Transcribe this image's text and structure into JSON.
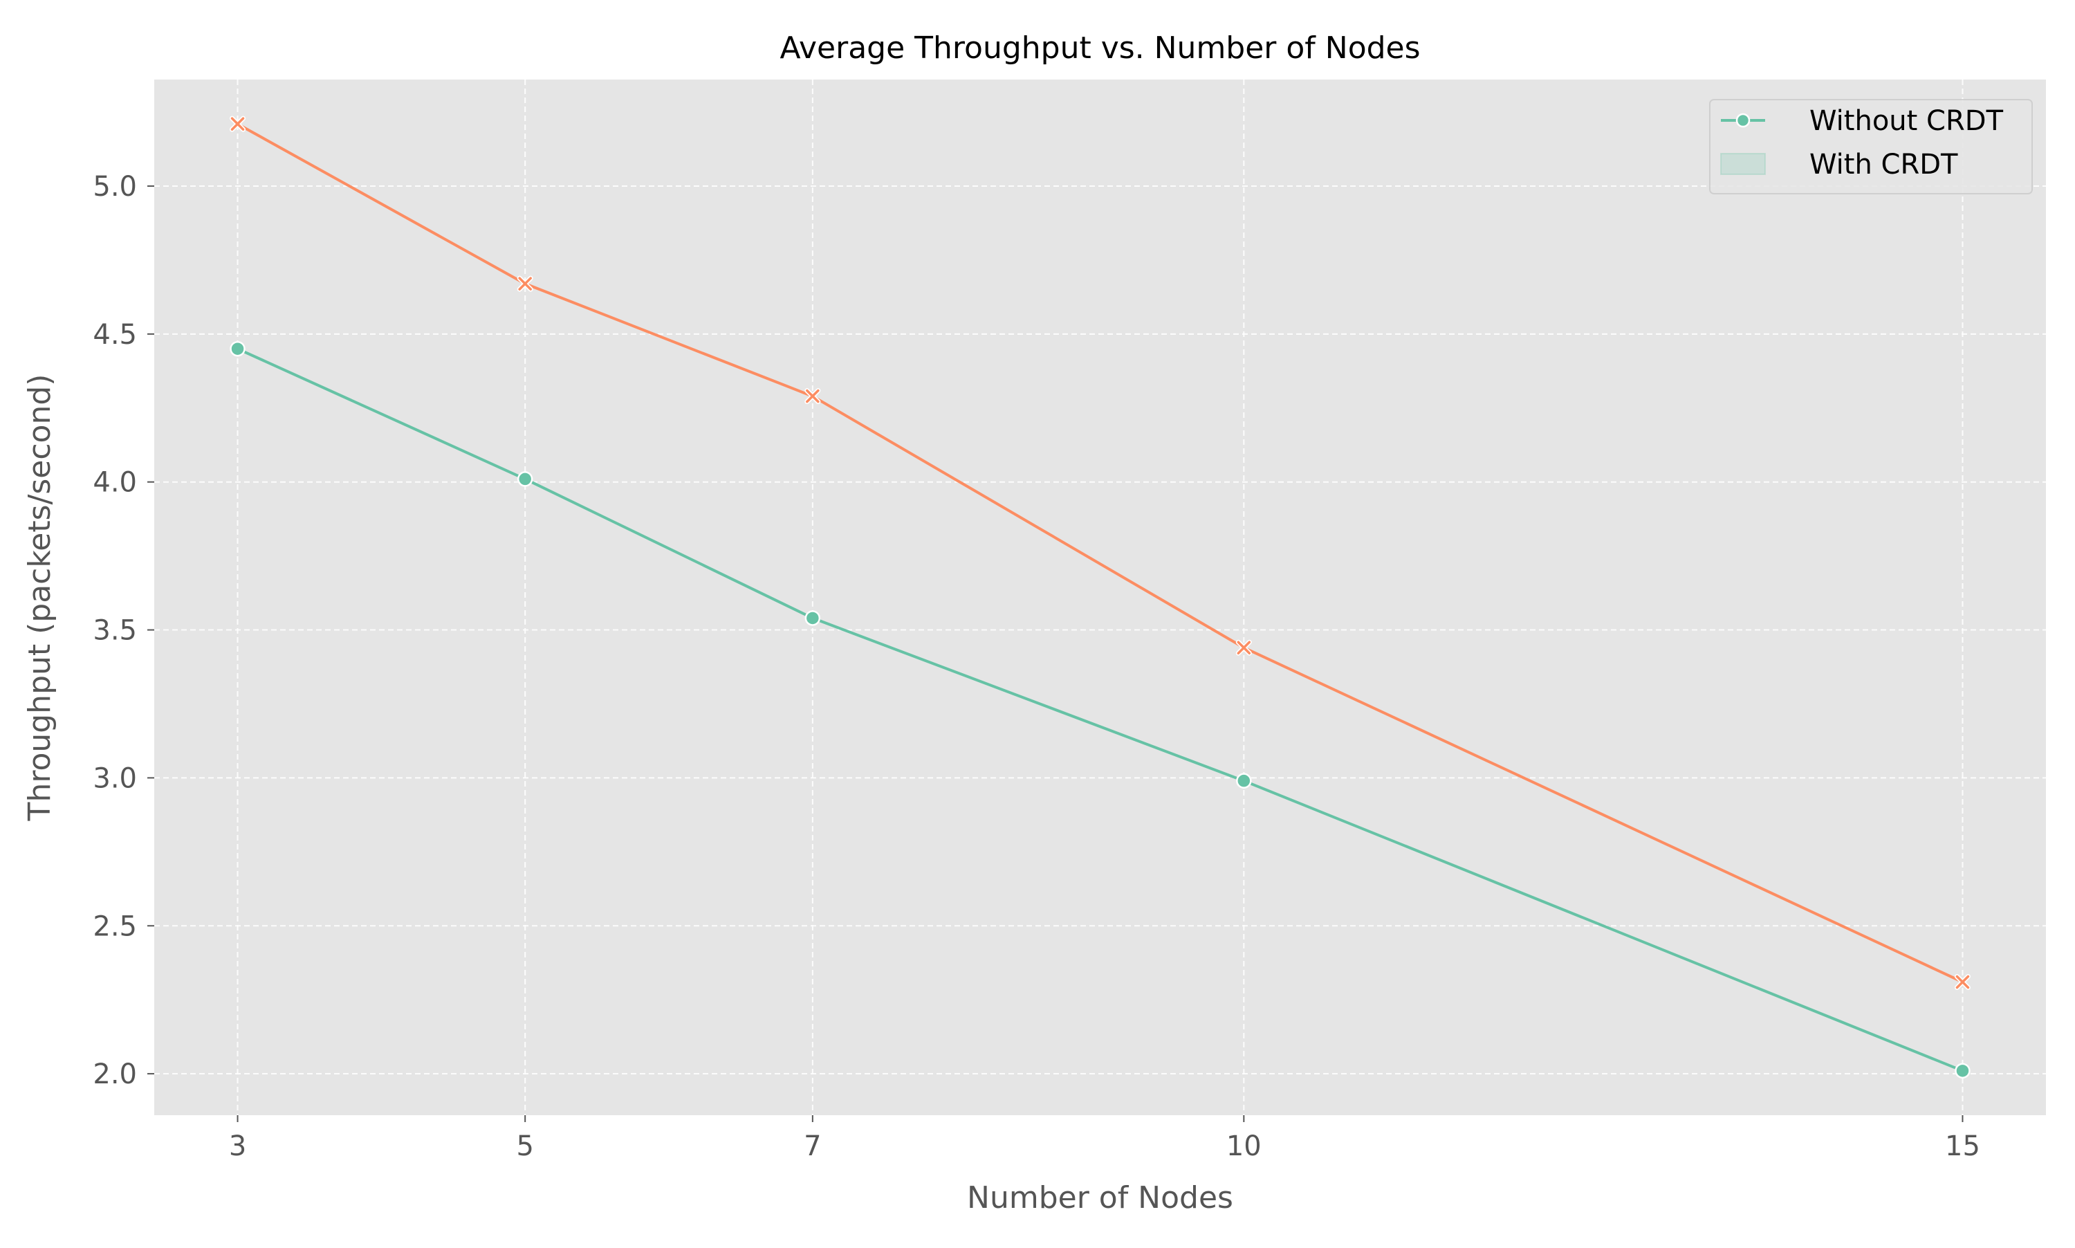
{
  "chart_data": {
    "type": "line",
    "title": "Average Throughput vs. Number of Nodes",
    "xlabel": "Number of Nodes",
    "ylabel": "Throughput (packets/second)",
    "x": [
      3,
      5,
      7,
      10,
      15
    ],
    "xlim": [
      2.42,
      15.58
    ],
    "ylim": [
      1.86,
      5.36
    ],
    "xticks": [
      3,
      5,
      7,
      10,
      15
    ],
    "yticks": [
      2.0,
      2.5,
      3.0,
      3.5,
      4.0,
      4.5,
      5.0
    ],
    "grid": true,
    "grid_style": "dashed",
    "background": "#e5e5e5",
    "legend_position": "top-right",
    "series": [
      {
        "name": "Without CRDT",
        "color": "#66c2a5",
        "marker": "circle",
        "values": [
          4.45,
          4.01,
          3.54,
          2.99,
          2.01
        ]
      },
      {
        "name": "",
        "color": "#fc8d62",
        "marker": "x",
        "values": [
          5.21,
          4.67,
          4.29,
          3.44,
          2.31
        ]
      }
    ],
    "legend_entries": [
      {
        "label": "Without CRDT",
        "kind": "line-marker",
        "color": "#66c2a5"
      },
      {
        "label": "With CRDT",
        "kind": "patch",
        "color": "#66c2a5"
      }
    ]
  }
}
